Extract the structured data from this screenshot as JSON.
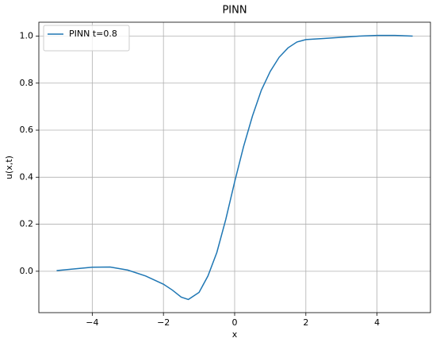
{
  "chart_data": {
    "type": "line",
    "title": "PINN",
    "xlabel": "x",
    "ylabel": "u(x,t)",
    "x": [
      -5,
      -4.5,
      -4,
      -3.5,
      -3,
      -2.5,
      -2,
      -1.75,
      -1.5,
      -1.3,
      -1,
      -0.75,
      -0.5,
      -0.25,
      0,
      0.25,
      0.5,
      0.75,
      1,
      1.25,
      1.5,
      1.75,
      2,
      2.5,
      3,
      3.5,
      4,
      4.5,
      5
    ],
    "series": [
      {
        "name": "PINN t=0.8",
        "color": "#1f77b4",
        "values": [
          0.003,
          0.01,
          0.017,
          0.018,
          0.005,
          -0.02,
          -0.055,
          -0.08,
          -0.11,
          -0.12,
          -0.09,
          -0.02,
          0.08,
          0.22,
          0.38,
          0.53,
          0.66,
          0.77,
          0.85,
          0.91,
          0.95,
          0.975,
          0.985,
          0.99,
          0.995,
          1.0,
          1.003,
          1.003,
          1.0
        ]
      }
    ],
    "xlim": [
      -5.5,
      5.5
    ],
    "ylim": [
      -0.176,
      1.059
    ],
    "xticks": [
      {
        "value": -4,
        "label": "−4"
      },
      {
        "value": -2,
        "label": "−2"
      },
      0,
      2,
      4
    ],
    "yticks": [
      {
        "value": 0,
        "label": "0.0"
      },
      0.2,
      0.4,
      0.6,
      0.8,
      {
        "value": 1,
        "label": "1.0"
      }
    ],
    "grid": true,
    "legend": "upper left"
  }
}
